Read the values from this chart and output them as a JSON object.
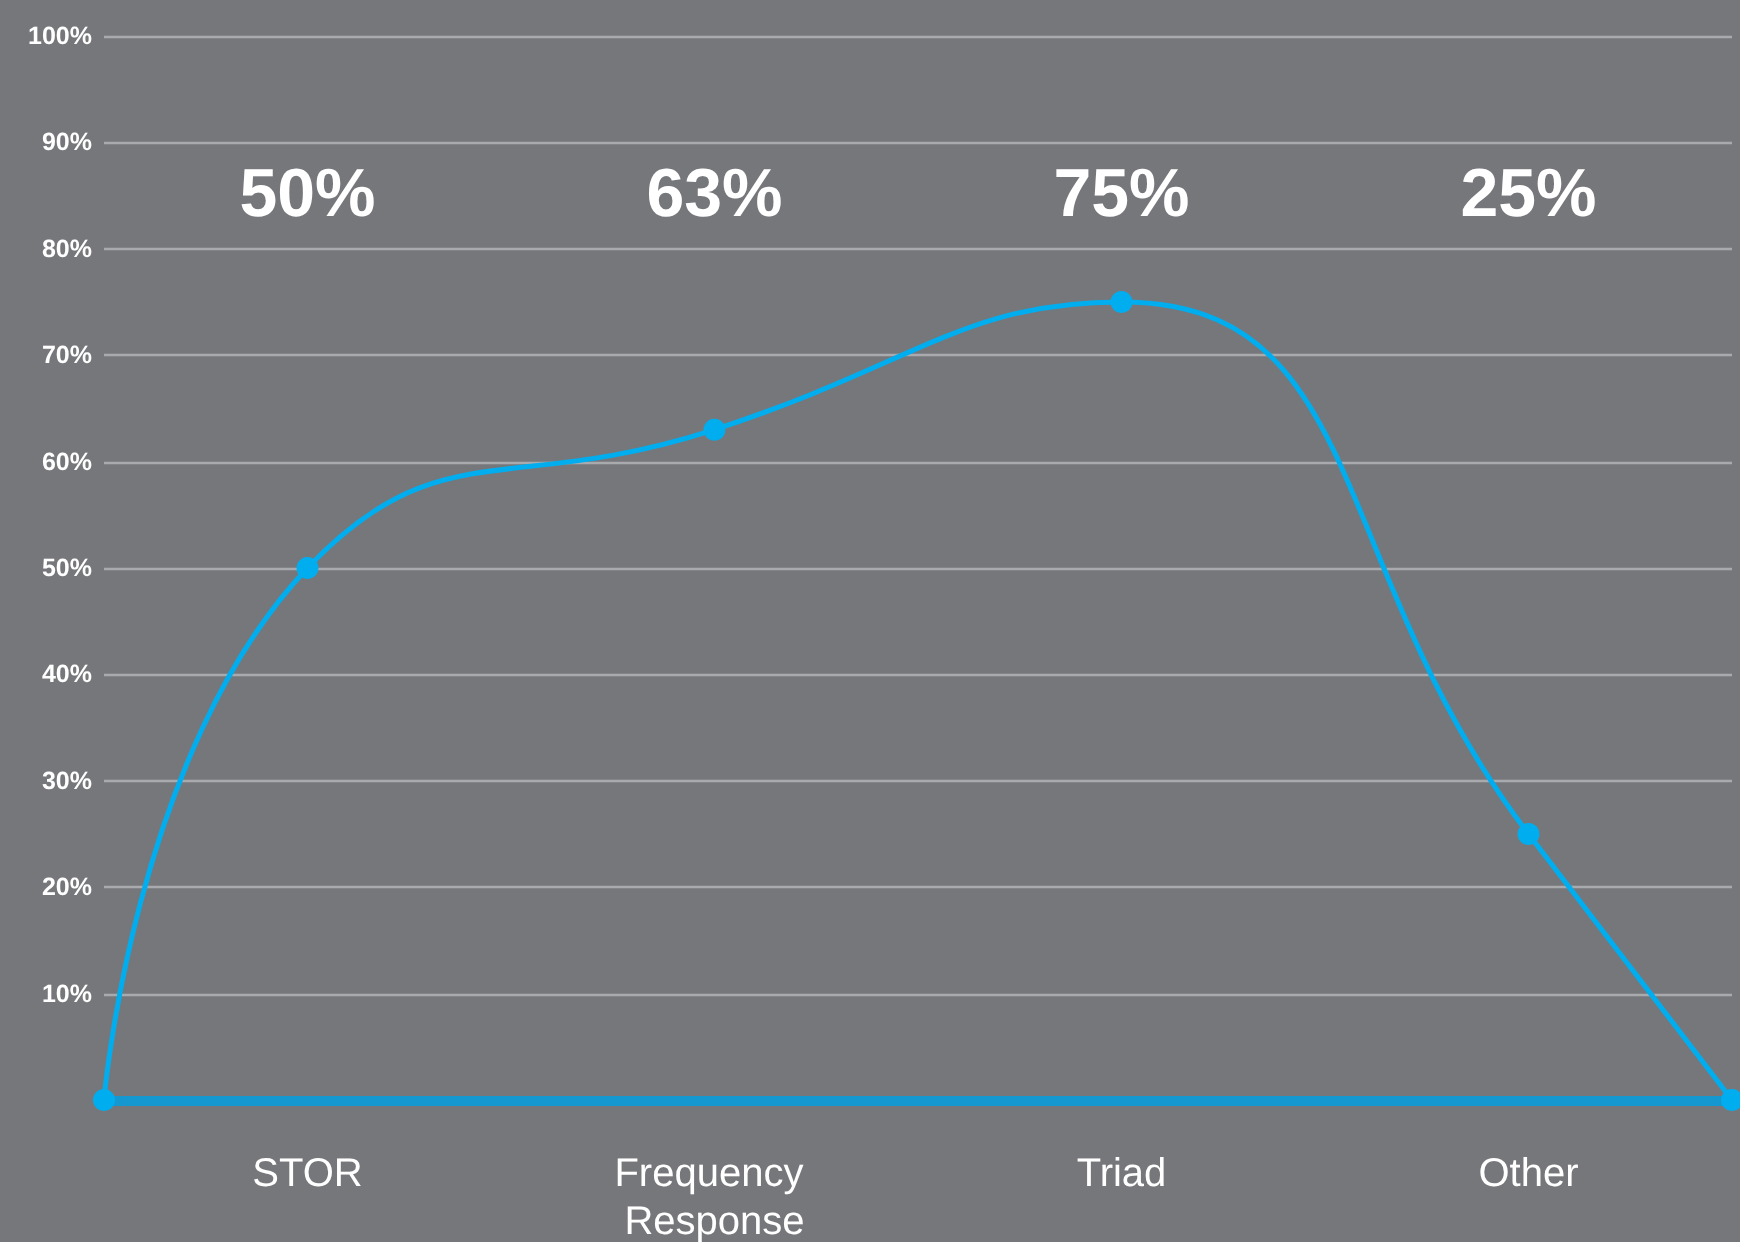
{
  "chart_data": {
    "type": "line",
    "categories": [
      null,
      "STOR",
      null,
      "Frequency Response",
      null,
      "Triad",
      null,
      "Other",
      null
    ],
    "values": [
      0,
      50,
      null,
      63,
      null,
      75,
      null,
      25,
      0
    ],
    "color": "#00aeef",
    "marker": "circle",
    "ylim": [
      0,
      100
    ],
    "yticks": [
      {
        "value": 10,
        "label": "10%"
      },
      {
        "value": 20,
        "label": "20%"
      },
      {
        "value": 30,
        "label": "30%"
      },
      {
        "value": 40,
        "label": "40%"
      },
      {
        "value": 50,
        "label": "50%"
      },
      {
        "value": 60,
        "label": "60%"
      },
      {
        "value": 70,
        "label": "70%"
      },
      {
        "value": 80,
        "label": "80%"
      },
      {
        "value": 90,
        "label": "90%"
      },
      {
        "value": 100,
        "label": "100%"
      }
    ],
    "grid": "y",
    "annotations": [
      "50%",
      "63%",
      "75%",
      "25%"
    ]
  }
}
